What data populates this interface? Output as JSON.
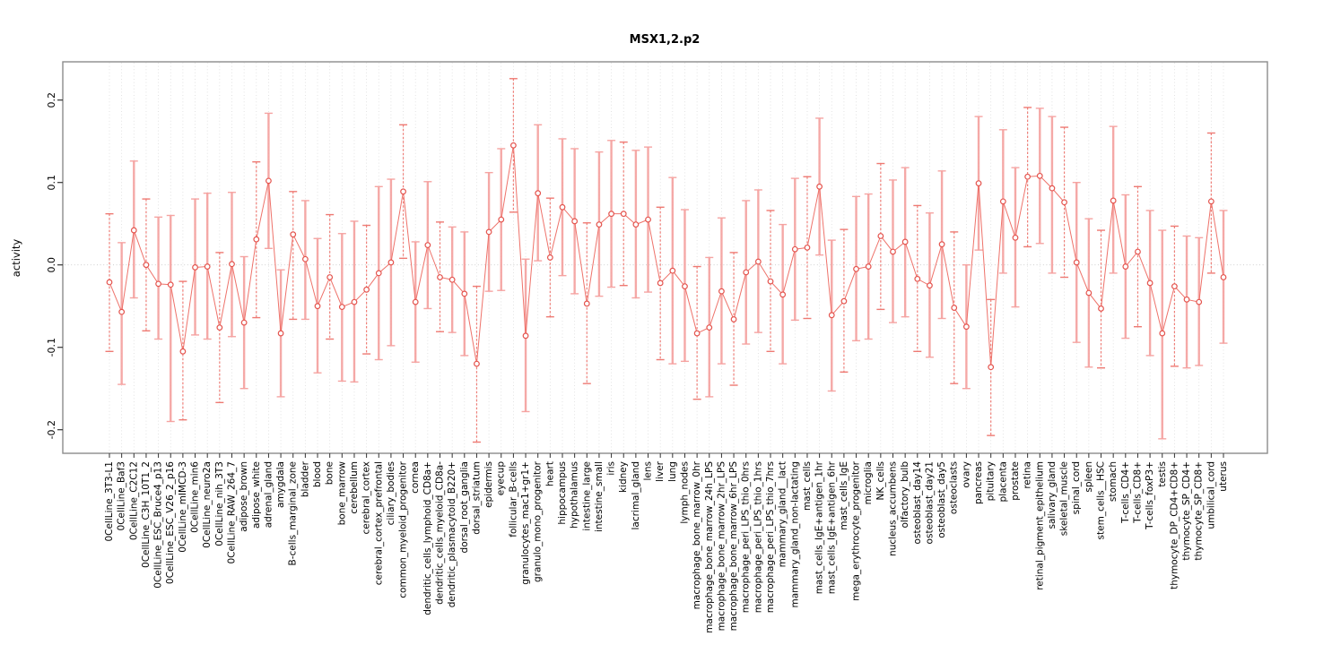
{
  "title": "MSX1,2.p2",
  "axes": {
    "y_label": "activity",
    "y_tick_labels": [
      "-0.2",
      "-0.1",
      "0.0",
      "0.1",
      "0.2"
    ],
    "y_tick_values": [
      -0.2,
      -0.1,
      0.0,
      0.1,
      0.2
    ],
    "grid": "vertical dotted per category, dotted zero line",
    "legend": "none"
  },
  "colors": {
    "error_bar": "#f5a09e",
    "error_bar_thin": "#ee736c",
    "point_stroke": "#e4544e",
    "connector_line": "#ed6a62",
    "gridline": "#dcdcdc",
    "zero_line": "#c8c8c8",
    "frame": "#8c8c8c",
    "tick": "#333333",
    "text": "#000000",
    "background": "#ffffff"
  },
  "chart_data": {
    "type": "line",
    "subtype": "points-with-error-bars",
    "title": "MSX1,2.p2",
    "xlabel": "",
    "ylabel": "activity",
    "ylim": [
      -0.2275,
      0.2453
    ],
    "y_ticks": [
      -0.2,
      -0.1,
      0.0,
      0.1,
      0.2
    ],
    "categories": [
      "0CellLine_3T3-L1",
      "0CellLine_Baf3",
      "0CellLine_C2C12",
      "0CellLine_C3H_10T1_2",
      "0CellLine_ESC_Bruce4_p13",
      "0CellLine_ESC_V26_2_p16",
      "0CellLine_mIMCD-3",
      "0CellLine_min6",
      "0CellLine_neuro2a",
      "0CellLine_nih_3T3",
      "0CellLine_RAW_264_7",
      "adipose_brown",
      "adipose_white",
      "adrenal_gland",
      "amygdala",
      "B-cells_marginal_zone",
      "bladder",
      "blood",
      "bone",
      "bone_marrow",
      "cerebellum",
      "cerebral_cortex",
      "cerebral_cortex_prefrontal",
      "ciliary_bodies",
      "common_myeloid_progenitor",
      "cornea",
      "dendritic_cells_lymphoid_CD8a+",
      "dendritic_cells_myeloid_CD8a-",
      "dendritic_plasmacytoid_B220+",
      "dorsal_root_ganglia",
      "dorsal_striatum",
      "epidermis",
      "eyecup",
      "follicular_B-cells",
      "granulocytes_mac1+gr1+",
      "granulo_mono_progenitor",
      "heart",
      "hippocampus",
      "hypothalamus",
      "intestine_large",
      "intestine_small",
      "iris",
      "kidney",
      "lacrimal_gland",
      "lens",
      "liver",
      "lung",
      "lymph_nodes",
      "macrophage_bone_marrow_0hr",
      "macrophage_bone_marrow_24h_LPS",
      "macrophage_bone_marrow_2hr_LPS",
      "macrophage_bone_marrow_6hr_LPS",
      "macrophage_peri_LPS_thio_0hrs",
      "macrophage_peri_LPS_thio_1hrs",
      "macrophage_peri_LPS_thio_7hrs",
      "mammary_gland__lact",
      "mammary_gland_non-lactating",
      "mast_cells",
      "mast_cells_IgE+antigen_1hr",
      "mast_cells_IgE+antigen_6hr",
      "mast_cells_IgE",
      "mega_erythrocyte_progenitor",
      "microglia",
      "NK_cells",
      "nucleus_accumbens",
      "olfactory_bulb",
      "osteoblast_day14",
      "osteoblast_day21",
      "osteoblast_day5",
      "osteoclasts",
      "ovary",
      "pancreas",
      "pituitary",
      "placenta",
      "prostate",
      "retina",
      "retinal_pigment_epithelium",
      "salivary_gland",
      "skeletal_muscle",
      "spinal_cord",
      "spleen",
      "stem_cells__HSC",
      "stomach",
      "T-cells_CD4+",
      "T-cells_CD8+",
      "T-cells_foxP3+",
      "testis",
      "thymocyte_DP_CD4+CD8+",
      "thymocyte_SP_CD4+",
      "thymocyte_SP_CD8+",
      "umbilical_cord",
      "uterus"
    ],
    "values": [
      -0.021,
      -0.057,
      0.042,
      0.0,
      -0.023,
      -0.024,
      -0.105,
      -0.003,
      -0.002,
      -0.076,
      0.001,
      -0.07,
      0.031,
      0.102,
      -0.083,
      0.037,
      0.007,
      -0.05,
      -0.015,
      -0.051,
      -0.045,
      -0.03,
      -0.01,
      0.003,
      0.089,
      -0.045,
      0.024,
      -0.015,
      -0.018,
      -0.035,
      -0.12,
      0.04,
      0.055,
      0.145,
      -0.086,
      0.087,
      0.009,
      0.07,
      0.053,
      -0.047,
      0.049,
      0.062,
      0.062,
      0.049,
      0.055,
      -0.022,
      -0.007,
      -0.026,
      -0.083,
      -0.076,
      -0.032,
      -0.066,
      -0.009,
      0.004,
      -0.02,
      -0.036,
      0.019,
      0.021,
      0.095,
      -0.061,
      -0.044,
      -0.005,
      -0.002,
      0.035,
      0.016,
      0.028,
      -0.017,
      -0.025,
      0.025,
      -0.052,
      -0.075,
      0.099,
      -0.124,
      0.077,
      0.033,
      0.107,
      0.108,
      0.093,
      0.076,
      0.003,
      -0.034,
      -0.053,
      0.078,
      -0.002,
      0.016,
      -0.022,
      -0.083,
      -0.026,
      -0.042,
      -0.045,
      0.077,
      -0.015
    ],
    "err_lo": [
      -0.105,
      -0.145,
      -0.04,
      -0.08,
      -0.09,
      -0.19,
      -0.188,
      -0.085,
      -0.09,
      -0.167,
      -0.087,
      -0.15,
      -0.064,
      0.02,
      -0.16,
      -0.066,
      -0.066,
      -0.131,
      -0.09,
      -0.141,
      -0.142,
      -0.108,
      -0.115,
      -0.098,
      0.008,
      -0.118,
      -0.053,
      -0.081,
      -0.082,
      -0.11,
      -0.215,
      -0.032,
      -0.031,
      0.064,
      -0.178,
      0.005,
      -0.063,
      -0.013,
      -0.035,
      -0.144,
      -0.038,
      -0.027,
      -0.025,
      -0.04,
      -0.033,
      -0.115,
      -0.12,
      -0.117,
      -0.163,
      -0.16,
      -0.12,
      -0.146,
      -0.096,
      -0.082,
      -0.105,
      -0.12,
      -0.067,
      -0.065,
      0.012,
      -0.153,
      -0.13,
      -0.092,
      -0.09,
      -0.054,
      -0.07,
      -0.063,
      -0.105,
      -0.112,
      -0.065,
      -0.144,
      -0.15,
      0.018,
      -0.207,
      -0.01,
      -0.051,
      0.022,
      0.026,
      -0.01,
      -0.015,
      -0.094,
      -0.124,
      -0.125,
      -0.01,
      -0.089,
      -0.075,
      -0.11,
      -0.211,
      -0.123,
      -0.125,
      -0.122,
      -0.01,
      -0.095
    ],
    "err_hi": [
      0.062,
      0.027,
      0.126,
      0.08,
      0.058,
      0.06,
      -0.02,
      0.08,
      0.087,
      0.015,
      0.088,
      0.01,
      0.125,
      0.184,
      -0.006,
      0.089,
      0.078,
      0.032,
      0.061,
      0.038,
      0.053,
      0.048,
      0.095,
      0.104,
      0.17,
      0.028,
      0.101,
      0.052,
      0.046,
      0.04,
      -0.026,
      0.112,
      0.141,
      0.226,
      0.007,
      0.17,
      0.081,
      0.153,
      0.141,
      0.051,
      0.137,
      0.151,
      0.149,
      0.139,
      0.143,
      0.07,
      0.106,
      0.067,
      -0.002,
      0.009,
      0.057,
      0.015,
      0.078,
      0.091,
      0.066,
      0.049,
      0.105,
      0.107,
      0.178,
      0.03,
      0.043,
      0.083,
      0.086,
      0.123,
      0.103,
      0.118,
      0.072,
      0.063,
      0.114,
      0.04,
      0.0,
      0.18,
      -0.042,
      0.164,
      0.118,
      0.191,
      0.19,
      0.18,
      0.167,
      0.1,
      0.056,
      0.042,
      0.168,
      0.085,
      0.095,
      0.066,
      0.042,
      0.047,
      0.035,
      0.033,
      0.16,
      0.066
    ]
  }
}
